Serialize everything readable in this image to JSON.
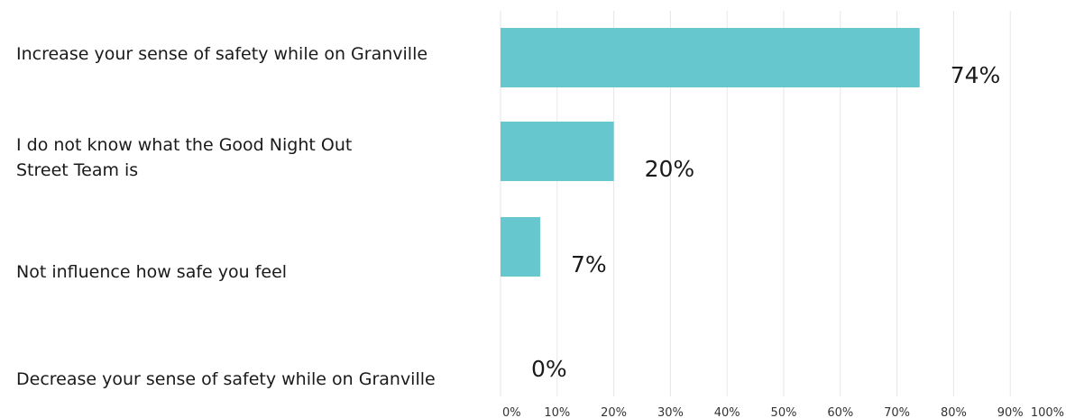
{
  "chart_data": {
    "type": "bar",
    "orientation": "horizontal",
    "categories": [
      "Increase your sense of safety while on Granville",
      "I do not know what the Good Night Out\nStreet Team is",
      "Not influence how safe you feel",
      "Decrease your sense of safety while on Granville"
    ],
    "values": [
      74,
      20,
      7,
      0
    ],
    "data_labels": [
      "74%",
      "20%",
      "7%",
      "0%"
    ],
    "xlim": [
      0,
      100
    ],
    "x_ticks": [
      "0%",
      "10%",
      "20%",
      "30%",
      "40%",
      "50%",
      "60%",
      "70%",
      "80%",
      "90%",
      "100%"
    ],
    "grid": "vertical",
    "bar_color": "#67c7ce",
    "grid_color": "#e6e6e6"
  }
}
